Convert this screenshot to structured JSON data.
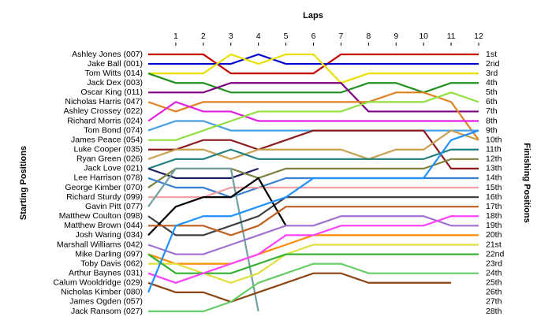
{
  "chart_data": {
    "type": "line",
    "title": "Laps",
    "y_label_left": "Starting Positions",
    "y_label_right": "Finishing Positions",
    "x": [
      0,
      1,
      2,
      3,
      4,
      5,
      6,
      7,
      8,
      9,
      10,
      11,
      12
    ],
    "xlim": [
      0,
      12
    ],
    "xticks": [
      1,
      2,
      3,
      4,
      5,
      6,
      7,
      8,
      9,
      10,
      11,
      12
    ],
    "ylim": [
      1,
      28
    ],
    "start_labels": [
      "Ashley Jones (007)",
      "Jake Ball (001)",
      "Tom Witts (014)",
      "Jack Dex (003)",
      "Oscar King (011)",
      "Nicholas Harris (047)",
      "Ashley Crossey (022)",
      "Richard Morris (024)",
      "Tom Bond (074)",
      "James Peace (054)",
      "Luke Cooper (035)",
      "Ryan Green (026)",
      "Jack Love (021)",
      "Lee Harrison (078)",
      "George Kimber (070)",
      "Richard Sturdy (099)",
      "Gavin Pitt (077)",
      "Matthew Coulton (098)",
      "Matthew Brown (044)",
      "Josh Waring (034)",
      "Marshall Williams (042)",
      "Mike Darling (097)",
      "Toby Davis (062)",
      "Arthur Baynes (031)",
      "Calum Wooldridge (029)",
      "Nicholas Kimber (080)",
      "James Ogden (057)",
      "Jack Ransom (027)"
    ],
    "finish_labels": [
      "1st",
      "2nd",
      "3rd",
      "4th",
      "5th",
      "6th",
      "7th",
      "8th",
      "9th",
      "10th",
      "11th",
      "12th",
      "13th",
      "14th",
      "15th",
      "16th",
      "17th",
      "18th",
      "19th",
      "20th",
      "21st",
      "22nd",
      "23rd",
      "24th",
      "25th",
      "26th",
      "27th",
      "28th"
    ],
    "series": [
      {
        "color": "#cc0000",
        "values": [
          1,
          1,
          1,
          3,
          3,
          3,
          3,
          1,
          1,
          1,
          1,
          1,
          1
        ]
      },
      {
        "color": "#0000cc",
        "values": [
          2,
          2,
          2,
          2,
          1,
          2,
          2,
          2,
          2,
          2,
          2,
          2,
          2
        ]
      },
      {
        "color": "#e8e000",
        "values": [
          3,
          3,
          3,
          1,
          2,
          1,
          1,
          4,
          3,
          3,
          3,
          3,
          3
        ]
      },
      {
        "color": "#209020",
        "values": [
          3,
          4,
          4,
          5,
          5,
          5,
          5,
          5,
          4,
          4,
          5,
          4,
          4
        ]
      },
      {
        "color": "#800080",
        "values": [
          5,
          5,
          5,
          4,
          4,
          4,
          4,
          4,
          7,
          7,
          7,
          7,
          7
        ]
      },
      {
        "color": "#e08020",
        "values": [
          6,
          7,
          6,
          6,
          6,
          6,
          6,
          6,
          6,
          5,
          5,
          6,
          10
        ]
      },
      {
        "color": "#e020e0",
        "values": [
          8,
          6,
          7,
          7,
          8,
          8,
          8,
          8,
          8,
          8,
          8,
          8,
          8
        ]
      },
      {
        "color": "#4aa0e0",
        "values": [
          9,
          8,
          8,
          9,
          9,
          9,
          9,
          9,
          9,
          9,
          9,
          9,
          9
        ]
      },
      {
        "color": "#90e040",
        "values": [
          10,
          10,
          9,
          8,
          7,
          7,
          7,
          7,
          6,
          6,
          6,
          5,
          6
        ]
      },
      {
        "color": "#8b1a1a",
        "values": [
          11,
          11,
          10,
          10,
          11,
          10,
          9,
          9,
          9,
          9,
          9,
          13,
          13
        ]
      },
      {
        "color": "#c8a050",
        "values": [
          12,
          11,
          11,
          12,
          11,
          11,
          11,
          11,
          12,
          11,
          11,
          9,
          10
        ]
      },
      {
        "color": "#208080",
        "values": [
          13,
          12,
          12,
          11,
          12,
          12,
          12,
          12,
          12,
          12,
          12,
          11,
          11
        ]
      },
      {
        "color": "#202060",
        "values": [
          13,
          14,
          14,
          14,
          13,
          null,
          null,
          null,
          null,
          null,
          null,
          null,
          null
        ]
      },
      {
        "color": "#808040",
        "values": [
          15,
          13,
          13,
          13,
          14,
          13,
          13,
          13,
          13,
          13,
          13,
          12,
          12
        ]
      },
      {
        "color": "#3a80d0",
        "values": [
          14,
          15,
          15,
          16,
          15,
          14,
          14,
          14,
          14,
          14,
          14,
          14,
          14
        ]
      },
      {
        "color": "#f0a0a0",
        "values": [
          16,
          16,
          16,
          15,
          15,
          15,
          15,
          15,
          15,
          15,
          15,
          15,
          15
        ]
      },
      {
        "color": "#70a0a0",
        "values": [
          17,
          13,
          13,
          13,
          28,
          null,
          null,
          null,
          null,
          null,
          null,
          null,
          null
        ]
      },
      {
        "color": "#404040",
        "values": [
          18,
          20,
          20,
          19,
          18,
          16,
          16,
          16,
          16,
          16,
          16,
          16,
          16
        ]
      },
      {
        "color": "#000000",
        "values": [
          20,
          17,
          16,
          16,
          14,
          19,
          null,
          null,
          null,
          null,
          null,
          null,
          null
        ]
      },
      {
        "color": "#c06020",
        "values": [
          19,
          19,
          19,
          20,
          19,
          17,
          17,
          17,
          17,
          17,
          17,
          17,
          17
        ]
      },
      {
        "color": "#a070d0",
        "values": [
          21,
          22,
          22,
          21,
          20,
          19,
          19,
          18,
          18,
          18,
          18,
          19,
          19
        ]
      },
      {
        "color": "#ff8c00",
        "values": [
          22,
          23,
          23,
          23,
          22,
          21,
          20,
          20,
          20,
          20,
          20,
          20,
          20
        ]
      },
      {
        "color": "#e0e040",
        "values": [
          23,
          23,
          24,
          25,
          24,
          22,
          21,
          21,
          21,
          21,
          21,
          21,
          21
        ]
      },
      {
        "color": "#30b030",
        "values": [
          22,
          24,
          24,
          24,
          23,
          22,
          22,
          22,
          22,
          22,
          22,
          22,
          22
        ]
      },
      {
        "color": "#ff40ff",
        "values": [
          24,
          25,
          24,
          23,
          22,
          20,
          20,
          19,
          19,
          19,
          19,
          18,
          18
        ]
      },
      {
        "color": "#8b4513",
        "values": [
          25,
          26,
          26,
          27,
          26,
          25,
          24,
          24,
          25,
          25,
          25,
          25,
          null
        ]
      },
      {
        "color": "#1e90ff",
        "values": [
          26,
          19,
          18,
          18,
          17,
          16,
          14,
          14,
          14,
          14,
          14,
          10,
          9
        ]
      },
      {
        "color": "#66cc66",
        "values": [
          28,
          28,
          28,
          27,
          25,
          24,
          23,
          23,
          24,
          24,
          24,
          24,
          24
        ]
      }
    ]
  }
}
